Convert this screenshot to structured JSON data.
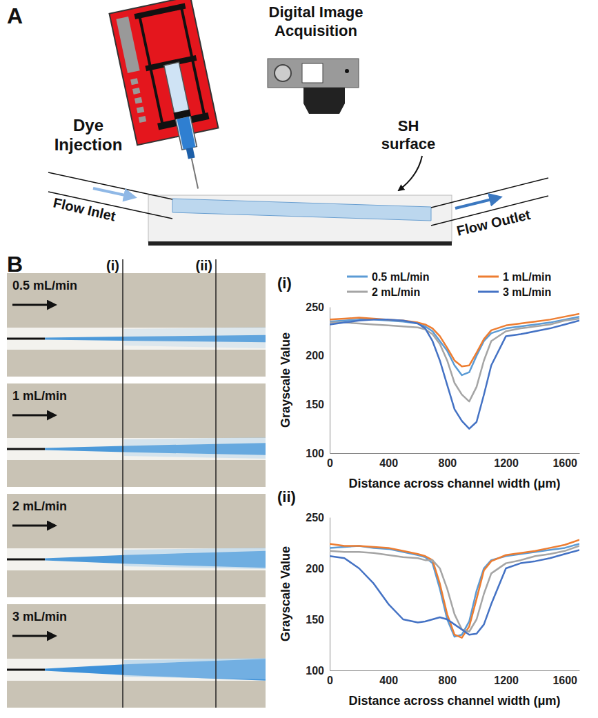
{
  "figure": {
    "panel_a": {
      "label": "A",
      "dye_injection": "Dye Injection",
      "camera": "Digital Image Acquisition",
      "surface": "SH surface",
      "inlet": "Flow Inlet",
      "outlet": "Flow Outlet"
    },
    "panel_b": {
      "label": "B",
      "image_columns": [
        "(i)",
        "(ii)"
      ],
      "image_rows": [
        "0.5 mL/min",
        "1 mL/min",
        "2 mL/min",
        "3 mL/min"
      ]
    }
  },
  "chart_data": [
    {
      "type": "line",
      "title": "(i)",
      "x_label": "Distance across channel width (μm)",
      "y_label": "Grayscale Value",
      "x": [
        0,
        100,
        200,
        300,
        400,
        500,
        600,
        650,
        700,
        750,
        800,
        850,
        900,
        950,
        1000,
        1050,
        1100,
        1200,
        1300,
        1400,
        1500,
        1600,
        1700
      ],
      "series": [
        {
          "name": "0.5 mL/min",
          "color": "#5b9bd5",
          "values": [
            235,
            236,
            237,
            237,
            236,
            235,
            233,
            230,
            225,
            215,
            205,
            190,
            180,
            183,
            200,
            215,
            223,
            228,
            230,
            232,
            234,
            237,
            240
          ]
        },
        {
          "name": "1 mL/min",
          "color": "#ed7d31",
          "values": [
            237,
            238,
            239,
            238,
            237,
            236,
            234,
            232,
            228,
            220,
            208,
            195,
            189,
            190,
            203,
            217,
            226,
            231,
            233,
            235,
            237,
            240,
            243
          ]
        },
        {
          "name": "2 mL/min",
          "color": "#a5a5a5",
          "values": [
            234,
            234,
            233,
            232,
            231,
            230,
            229,
            227,
            222,
            212,
            195,
            172,
            160,
            153,
            168,
            195,
            215,
            225,
            228,
            230,
            232,
            236,
            238
          ]
        },
        {
          "name": "3 mL/min",
          "color": "#4472c4",
          "values": [
            232,
            234,
            236,
            237,
            237,
            236,
            233,
            228,
            215,
            195,
            170,
            145,
            133,
            125,
            132,
            160,
            190,
            220,
            222,
            225,
            228,
            232,
            236
          ]
        }
      ],
      "xlim": [
        0,
        1700
      ],
      "xticks": [
        0,
        400,
        800,
        1200,
        1600
      ],
      "ylim": [
        100,
        250
      ],
      "yticks": [
        100,
        150,
        200,
        250
      ],
      "legend": "top"
    },
    {
      "type": "line",
      "title": "(ii)",
      "x_label": "Distance across channel width (μm)",
      "y_label": "Grayscale Value",
      "x": [
        0,
        100,
        200,
        300,
        400,
        500,
        600,
        650,
        700,
        750,
        800,
        850,
        900,
        950,
        1000,
        1050,
        1100,
        1200,
        1300,
        1400,
        1500,
        1600,
        1700
      ],
      "series": [
        {
          "name": "0.5 mL/min",
          "color": "#5b9bd5",
          "values": [
            220,
            221,
            222,
            220,
            219,
            216,
            213,
            211,
            205,
            180,
            150,
            133,
            135,
            148,
            178,
            200,
            208,
            212,
            214,
            216,
            218,
            220,
            224
          ]
        },
        {
          "name": "1 mL/min",
          "color": "#ed7d31",
          "values": [
            224,
            222,
            222,
            221,
            220,
            217,
            214,
            212,
            208,
            185,
            155,
            135,
            132,
            143,
            170,
            198,
            207,
            213,
            215,
            217,
            220,
            223,
            228
          ]
        },
        {
          "name": "2 mL/min",
          "color": "#a5a5a5",
          "values": [
            217,
            216,
            216,
            215,
            213,
            211,
            210,
            208,
            208,
            200,
            180,
            155,
            140,
            138,
            150,
            175,
            195,
            205,
            208,
            212,
            214,
            217,
            222
          ]
        },
        {
          "name": "3 mL/min",
          "color": "#4472c4",
          "values": [
            212,
            210,
            200,
            185,
            165,
            150,
            147,
            148,
            150,
            152,
            150,
            145,
            140,
            135,
            136,
            145,
            165,
            200,
            205,
            207,
            210,
            214,
            218
          ]
        }
      ],
      "xlim": [
        0,
        1700
      ],
      "xticks": [
        0,
        400,
        800,
        1200,
        1600
      ],
      "ylim": [
        100,
        250
      ],
      "yticks": [
        100,
        150,
        200,
        250
      ]
    }
  ]
}
